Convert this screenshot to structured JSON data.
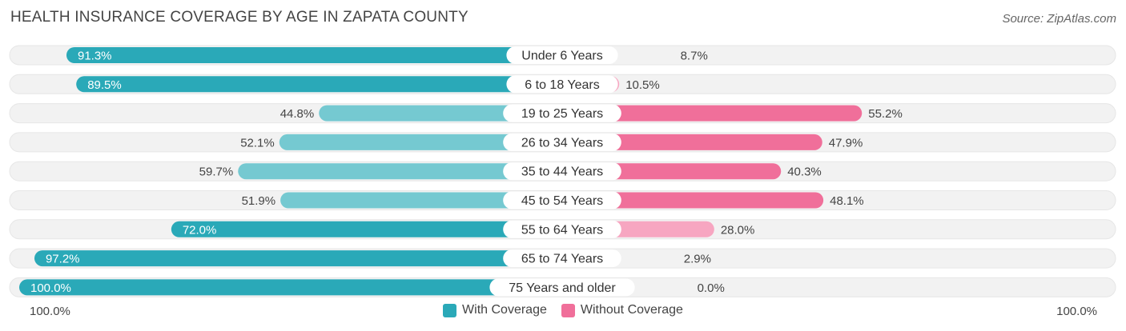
{
  "title": "HEALTH INSURANCE COVERAGE BY AGE IN ZAPATA COUNTY",
  "source": "Source: ZipAtlas.com",
  "colors": {
    "with_coverage": "#2aa9b8",
    "with_coverage_light": "#75c9d1",
    "without_coverage": "#f06f9a",
    "without_coverage_light": "#f7a6c1",
    "track": "#f2f2f2"
  },
  "axis": {
    "left_label": "100.0%",
    "right_label": "100.0%"
  },
  "legend": {
    "with_label": "With Coverage",
    "without_label": "Without Coverage"
  },
  "chart_data": {
    "type": "bar",
    "orientation": "diverging-horizontal",
    "title": "HEALTH INSURANCE COVERAGE BY AGE IN ZAPATA COUNTY",
    "categories": [
      "Under 6 Years",
      "6 to 18 Years",
      "19 to 25 Years",
      "26 to 34 Years",
      "35 to 44 Years",
      "45 to 54 Years",
      "55 to 64 Years",
      "65 to 74 Years",
      "75 Years and older"
    ],
    "series": [
      {
        "name": "With Coverage",
        "values": [
          91.3,
          89.5,
          44.8,
          52.1,
          59.7,
          51.9,
          72.0,
          97.2,
          100.0
        ],
        "labels": [
          "91.3%",
          "89.5%",
          "44.8%",
          "52.1%",
          "59.7%",
          "51.9%",
          "72.0%",
          "97.2%",
          "100.0%"
        ]
      },
      {
        "name": "Without Coverage",
        "values": [
          8.7,
          10.5,
          55.2,
          47.9,
          40.3,
          48.1,
          28.0,
          2.9,
          0.0
        ],
        "labels": [
          "8.7%",
          "10.5%",
          "55.2%",
          "47.9%",
          "40.3%",
          "48.1%",
          "28.0%",
          "2.9%",
          "0.0%"
        ]
      }
    ],
    "xlim": [
      0,
      100
    ],
    "legend_position": "bottom-center"
  }
}
